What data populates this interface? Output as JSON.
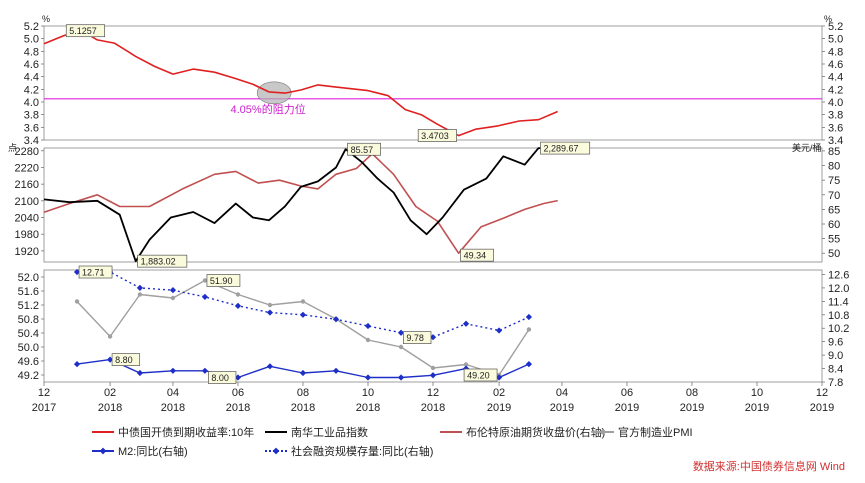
{
  "chart_data": [
    {
      "type": "line",
      "panel": "top",
      "unit_label": "%",
      "ylim": [
        3.4,
        5.2
      ],
      "yticks": [
        "5.2",
        "5.0",
        "4.8",
        "4.6",
        "4.4",
        "4.2",
        "4.0",
        "3.8",
        "3.6",
        "3.4"
      ],
      "reference_line": {
        "value": 4.05,
        "color": "#e020e0"
      },
      "annotation": "4.05%的阻力位",
      "series": [
        {
          "name": "中债国开债到期收益率:10年",
          "color": "#e02020",
          "x": [
            "2017-12-01",
            "2017-12-20",
            "2018-01-05",
            "2018-01-20",
            "2018-02-05",
            "2018-02-25",
            "2018-03-15",
            "2018-04-01",
            "2018-04-20",
            "2018-05-10",
            "2018-05-30",
            "2018-06-15",
            "2018-06-30",
            "2018-07-15",
            "2018-07-30",
            "2018-08-15",
            "2018-08-30",
            "2018-09-15",
            "2018-10-01",
            "2018-10-20",
            "2018-11-05",
            "2018-11-20",
            "2018-12-05",
            "2018-12-25",
            "2019-01-10",
            "2019-01-30",
            "2019-02-20",
            "2019-03-10",
            "2019-03-28"
          ],
          "values": [
            4.92,
            5.05,
            5.13,
            4.98,
            4.93,
            4.72,
            4.56,
            4.44,
            4.52,
            4.47,
            4.37,
            4.28,
            4.16,
            4.14,
            4.19,
            4.27,
            4.24,
            4.21,
            4.18,
            4.1,
            3.88,
            3.8,
            3.65,
            3.47,
            3.57,
            3.62,
            3.7,
            3.72,
            3.85
          ]
        }
      ],
      "labels": [
        {
          "x": "2017-12-20",
          "y": 5.1257,
          "text": "5.1257"
        },
        {
          "x": "2018-12-25",
          "y": 3.4703,
          "text": "3.4703"
        }
      ]
    },
    {
      "type": "line",
      "panel": "middle",
      "unit_label_left": "点",
      "unit_label_right": "美元/桶",
      "ylim_left": [
        1880,
        2290
      ],
      "ylim_right": [
        47,
        86
      ],
      "yticks_left": [
        "2280",
        "2220",
        "2160",
        "2100",
        "2040",
        "1980",
        "1920"
      ],
      "yticks_right": [
        "85",
        "80",
        "75",
        "70",
        "65",
        "60",
        "55",
        "50"
      ],
      "series": [
        {
          "name": "南华工业品指数",
          "color": "#000000",
          "axis": "left",
          "x": [
            "2017-12-01",
            "2017-12-25",
            "2018-01-20",
            "2018-02-10",
            "2018-02-25",
            "2018-03-10",
            "2018-03-30",
            "2018-04-20",
            "2018-05-10",
            "2018-05-30",
            "2018-06-15",
            "2018-06-30",
            "2018-07-15",
            "2018-07-30",
            "2018-08-15",
            "2018-09-01",
            "2018-09-10",
            "2018-09-25",
            "2018-10-10",
            "2018-10-25",
            "2018-11-10",
            "2018-11-25",
            "2018-12-10",
            "2018-12-30",
            "2019-01-20",
            "2019-02-05",
            "2019-02-25",
            "2019-03-10",
            "2019-03-28"
          ],
          "values": [
            2105,
            2095,
            2100,
            2050,
            1883.02,
            1960,
            2040,
            2060,
            2020,
            2090,
            2040,
            2030,
            2080,
            2150,
            2170,
            2220,
            2285.57,
            2240,
            2180,
            2130,
            2030,
            1980,
            2040,
            2140,
            2180,
            2260,
            2230,
            2289.67,
            2289.67
          ]
        },
        {
          "name": "布伦特原油期货收盘价(右轴)",
          "color": "#c05050",
          "axis": "right",
          "x": [
            "2017-12-01",
            "2017-12-25",
            "2018-01-20",
            "2018-02-10",
            "2018-03-10",
            "2018-04-10",
            "2018-05-10",
            "2018-05-30",
            "2018-06-20",
            "2018-07-10",
            "2018-07-30",
            "2018-08-15",
            "2018-09-01",
            "2018-09-20",
            "2018-10-05",
            "2018-10-25",
            "2018-11-15",
            "2018-12-05",
            "2018-12-25",
            "2019-01-15",
            "2019-02-05",
            "2019-02-25",
            "2019-03-15",
            "2019-03-28"
          ],
          "values": [
            64,
            67,
            70,
            66,
            66,
            72,
            77,
            78,
            74,
            75,
            73,
            72,
            77,
            79,
            84,
            77,
            66,
            61,
            50,
            59,
            62,
            65,
            67,
            68
          ]
        }
      ],
      "labels": [
        {
          "x": "2018-09-10",
          "y": 85.57,
          "axis": "right",
          "text": "85.57"
        },
        {
          "x": "2018-02-25",
          "y": 1883.02,
          "axis": "left",
          "text": "1,883.02"
        },
        {
          "x": "2018-12-25",
          "y": 49.34,
          "axis": "right",
          "text": "49.34"
        },
        {
          "x": "2019-03-10",
          "y": 2289.67,
          "axis": "left",
          "text": "2,289.67"
        }
      ]
    },
    {
      "type": "line",
      "panel": "bottom",
      "ylim_left": [
        49.0,
        52.2
      ],
      "ylim_right": [
        7.8,
        12.8
      ],
      "yticks_left": [
        "52.0",
        "51.6",
        "51.2",
        "50.8",
        "50.4",
        "50.0",
        "49.6",
        "49.2"
      ],
      "yticks_right": [
        "12.6",
        "12.0",
        "11.4",
        "10.8",
        "10.2",
        "9.6",
        "9.0",
        "8.4",
        "7.8"
      ],
      "series": [
        {
          "name": "官方制造业PMI",
          "color": "#a0a0a0",
          "axis": "left",
          "marker": "circle",
          "x": [
            "2018-01-01",
            "2018-02-01",
            "2018-03-01",
            "2018-04-01",
            "2018-05-01",
            "2018-06-01",
            "2018-07-01",
            "2018-08-01",
            "2018-09-01",
            "2018-10-01",
            "2018-11-01",
            "2018-12-01",
            "2019-01-01",
            "2019-02-01",
            "2019-03-01"
          ],
          "values": [
            51.3,
            50.3,
            51.5,
            51.4,
            51.9,
            51.5,
            51.2,
            51.3,
            50.8,
            50.2,
            50.0,
            49.4,
            49.5,
            49.2,
            50.5
          ]
        },
        {
          "name": "M2:同比(右轴)",
          "color": "#1e2fc8",
          "axis": "right",
          "marker": "diamond",
          "x": [
            "2018-01-01",
            "2018-02-01",
            "2018-03-01",
            "2018-04-01",
            "2018-05-01",
            "2018-06-01",
            "2018-07-01",
            "2018-08-01",
            "2018-09-01",
            "2018-10-01",
            "2018-11-01",
            "2018-12-01",
            "2019-01-01",
            "2019-02-01",
            "2019-03-01"
          ],
          "values": [
            8.6,
            8.8,
            8.2,
            8.3,
            8.3,
            8.0,
            8.5,
            8.2,
            8.3,
            8.0,
            8.0,
            8.1,
            8.4,
            8.0,
            8.6
          ]
        },
        {
          "name": "社会融资规模存量:同比(右轴)",
          "color": "#1e2fc8",
          "axis": "right",
          "marker": "diamond",
          "dashed": true,
          "x": [
            "2018-01-01",
            "2018-02-01",
            "2018-03-01",
            "2018-04-01",
            "2018-05-01",
            "2018-06-01",
            "2018-07-01",
            "2018-08-01",
            "2018-09-01",
            "2018-10-01",
            "2018-11-01",
            "2018-12-01",
            "2019-01-01",
            "2019-02-01",
            "2019-03-01"
          ],
          "values": [
            12.71,
            12.71,
            12.0,
            11.9,
            11.6,
            11.2,
            10.9,
            10.8,
            10.6,
            10.3,
            10.0,
            9.8,
            10.4,
            10.1,
            10.7
          ]
        }
      ],
      "labels": [
        {
          "x": "2018-01-01",
          "y": 12.71,
          "axis": "right",
          "text": "12.71"
        },
        {
          "x": "2018-02-01",
          "y": 8.8,
          "axis": "right",
          "text": "8.80"
        },
        {
          "x": "2018-05-01",
          "y": 51.9,
          "axis": "left",
          "text": "51.90"
        },
        {
          "x": "2018-06-01",
          "y": 8.0,
          "axis": "right",
          "text": "8.00"
        },
        {
          "x": "2018-12-01",
          "y": 9.78,
          "axis": "right",
          "text": "9.78"
        },
        {
          "x": "2019-02-01",
          "y": 49.2,
          "axis": "left",
          "text": "49.20"
        }
      ]
    }
  ],
  "x_axis": {
    "range": [
      "2017-12-01",
      "2019-12-01"
    ],
    "ticks": [
      {
        "date": "2017-12-01",
        "month": "12",
        "year": "2017"
      },
      {
        "date": "2018-02-01",
        "month": "02",
        "year": "2018"
      },
      {
        "date": "2018-04-01",
        "month": "04",
        "year": "2018"
      },
      {
        "date": "2018-06-01",
        "month": "06",
        "year": "2018"
      },
      {
        "date": "2018-08-01",
        "month": "08",
        "year": "2018"
      },
      {
        "date": "2018-10-01",
        "month": "10",
        "year": "2018"
      },
      {
        "date": "2018-12-01",
        "month": "12",
        "year": "2018"
      },
      {
        "date": "2019-02-01",
        "month": "02",
        "year": "2019"
      },
      {
        "date": "2019-04-01",
        "month": "04",
        "year": "2019"
      },
      {
        "date": "2019-06-01",
        "month": "06",
        "year": "2019"
      },
      {
        "date": "2019-08-01",
        "month": "08",
        "year": "2019"
      },
      {
        "date": "2019-10-01",
        "month": "10",
        "year": "2019"
      },
      {
        "date": "2019-12-01",
        "month": "12",
        "year": "2019"
      }
    ]
  },
  "legend": {
    "placement": "bottom",
    "items": [
      {
        "label": "中债国开债到期收益率:10年",
        "color": "#e02020",
        "style": "solid"
      },
      {
        "label": "南华工业品指数",
        "color": "#000000",
        "style": "solid"
      },
      {
        "label": "布伦特原油期货收盘价(右轴)",
        "color": "#c05050",
        "style": "solid"
      },
      {
        "label": "官方制造业PMI",
        "color": "#a0a0a0",
        "style": "solid-marker"
      },
      {
        "label": "M2:同比(右轴)",
        "color": "#1e2fc8",
        "style": "solid-marker"
      },
      {
        "label": "社会融资规模存量:同比(右轴)",
        "color": "#1e2fc8",
        "style": "dotted-marker"
      }
    ]
  },
  "source": "数据来源:中国债券信息网 Wind"
}
